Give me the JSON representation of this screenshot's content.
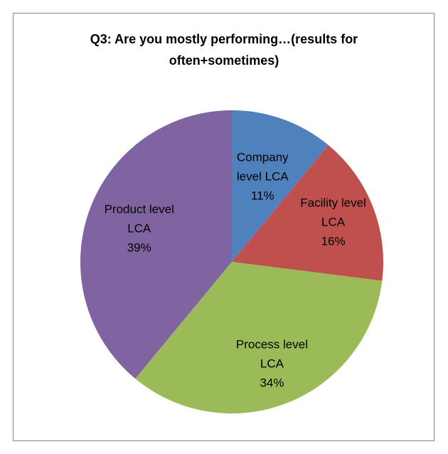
{
  "chart_data": {
    "type": "pie",
    "title": "Q3: Are you mostly performing…(results for often+sometimes)",
    "categories": [
      "Company level LCA",
      "Facility level LCA",
      "Process level LCA",
      "Product level LCA"
    ],
    "values": [
      11,
      16,
      34,
      39
    ],
    "value_labels": [
      "11%",
      "16%",
      "34%",
      "39%"
    ],
    "colors": [
      "#4f81bd",
      "#c0504d",
      "#9bbb59",
      "#8064a2"
    ]
  }
}
